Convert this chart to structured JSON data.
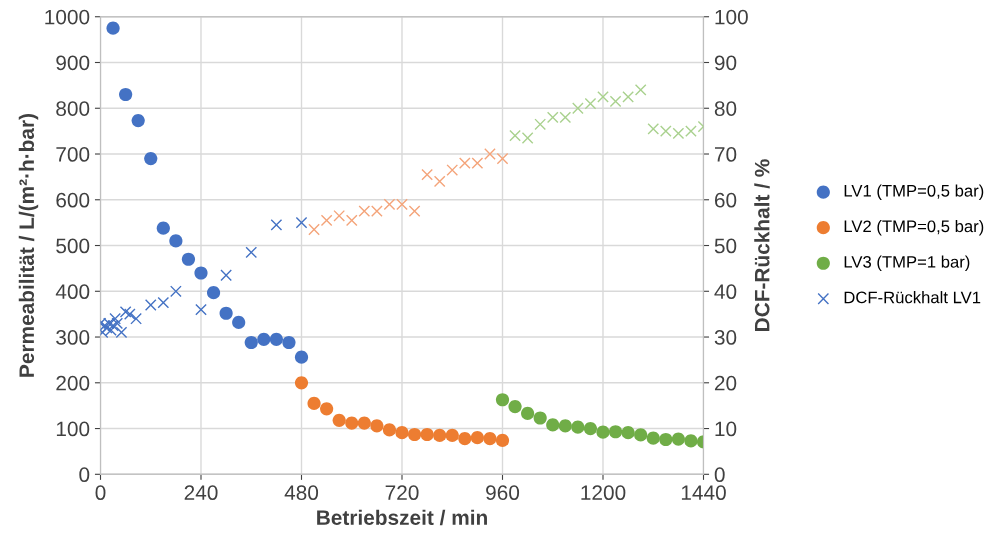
{
  "chart_data": {
    "type": "scatter",
    "xlabel": "Betriebszeit / min",
    "ylabel": "Permeabilität / L/(m²·h·bar)",
    "y2label": "DCF-Rückhalt / %",
    "xlim": [
      0,
      1440
    ],
    "xticks": [
      0,
      240,
      480,
      720,
      960,
      1200,
      1440
    ],
    "ylim": [
      0,
      1000
    ],
    "yticks": [
      0,
      100,
      200,
      300,
      400,
      500,
      600,
      700,
      800,
      900,
      1000
    ],
    "y2lim": [
      0,
      100
    ],
    "y2ticks": [
      0,
      10,
      20,
      30,
      40,
      50,
      60,
      70,
      80,
      90,
      100
    ],
    "grid": true,
    "legend": "right",
    "series": [
      {
        "name": "LV1 (TMP=0,5 bar)",
        "color": "#4472c4",
        "marker": "circle",
        "x": [
          30,
          60,
          90,
          120,
          150,
          180,
          210,
          240,
          270,
          300,
          330,
          360,
          390,
          420,
          450,
          480
        ],
        "values": [
          975,
          830,
          773,
          690,
          538,
          510,
          470,
          440,
          397,
          352,
          332,
          288,
          295,
          295,
          288,
          256
        ]
      },
      {
        "name": "LV2 (TMP=0,5 bar)",
        "color": "#ed7d31",
        "marker": "circle",
        "x": [
          480,
          510,
          540,
          570,
          600,
          630,
          660,
          690,
          720,
          750,
          780,
          810,
          840,
          870,
          900,
          930,
          960
        ],
        "values": [
          200,
          155,
          143,
          118,
          112,
          112,
          106,
          97,
          91,
          87,
          87,
          85,
          85,
          78,
          80,
          78,
          74
        ]
      },
      {
        "name": "LV3 (TMP=1 bar)",
        "color": "#70ad47",
        "marker": "circle",
        "x": [
          960,
          990,
          1020,
          1050,
          1080,
          1110,
          1140,
          1170,
          1200,
          1230,
          1260,
          1290,
          1320,
          1350,
          1380,
          1410,
          1440
        ],
        "values": [
          163,
          148,
          133,
          123,
          108,
          106,
          103,
          100,
          92,
          93,
          91,
          86,
          79,
          76,
          77,
          73,
          71
        ]
      },
      {
        "name": "DCF-Rückhalt LV1",
        "color": "#4472c4",
        "marker": "cross",
        "axis": "y2",
        "x": [
          0,
          5,
          10,
          15,
          20,
          25,
          30,
          35,
          40,
          50,
          60,
          70,
          85,
          120,
          150,
          180,
          240,
          300,
          360,
          420,
          480
        ],
        "values": [
          33,
          31,
          32.5,
          32,
          33,
          31.5,
          32.5,
          34,
          33,
          31,
          35.5,
          35,
          34,
          37,
          37.5,
          40,
          36,
          43.5,
          48.5,
          54.5,
          55
        ]
      },
      {
        "color": "#f4a47a",
        "marker": "cross",
        "axis": "y2",
        "x": [
          510,
          540,
          570,
          600,
          630,
          660,
          690,
          720,
          750,
          780,
          810,
          840,
          870,
          900,
          930,
          960
        ],
        "values": [
          53.5,
          55.5,
          56.5,
          55.5,
          57.5,
          57.5,
          59,
          59,
          57.5,
          65.5,
          64,
          66.5,
          68,
          68,
          70,
          69
        ]
      },
      {
        "color": "#a9d18e",
        "marker": "cross",
        "axis": "y2",
        "x": [
          990,
          1020,
          1050,
          1080,
          1110,
          1140,
          1170,
          1200,
          1230,
          1260,
          1290,
          1320,
          1350,
          1380,
          1410,
          1440
        ],
        "values": [
          74,
          73.5,
          76.5,
          78,
          78,
          80,
          81,
          82.5,
          81.5,
          82.5,
          84,
          75.5,
          75,
          74.5,
          75,
          76
        ]
      }
    ]
  }
}
